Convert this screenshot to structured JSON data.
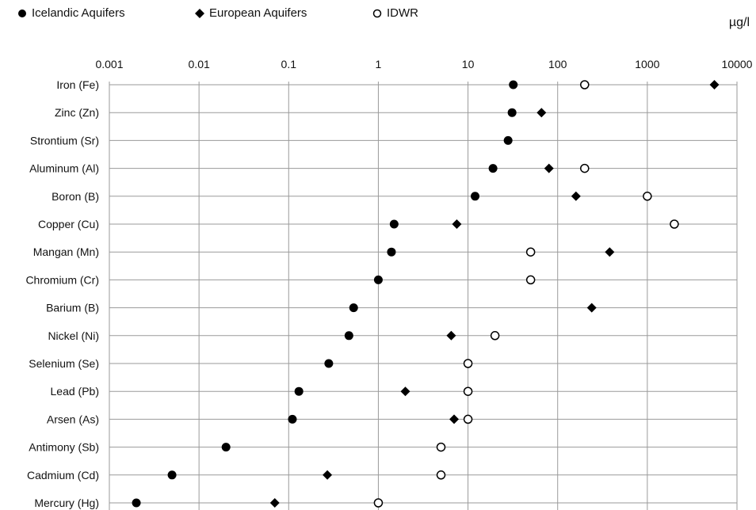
{
  "legend": {
    "items": [
      {
        "label": "Icelandic Aquifers",
        "marker": "filled-circle"
      },
      {
        "label": "European Aquifers",
        "marker": "filled-diamond"
      },
      {
        "label": "IDWR",
        "marker": "open-circle"
      }
    ]
  },
  "chart_data": {
    "type": "scatter",
    "xscale": "log",
    "xlim": [
      0.001,
      10000
    ],
    "xticks": [
      0.001,
      0.01,
      0.1,
      1,
      10,
      100,
      1000,
      10000
    ],
    "xtick_labels": [
      "0.001",
      "0.01",
      "0.1",
      "1",
      "10",
      "100",
      "1000",
      "10000"
    ],
    "unit_label": "µg/l",
    "grid": true,
    "legend_position": "top-left",
    "categories": [
      "Iron (Fe)",
      "Zinc (Zn)",
      "Strontium (Sr)",
      "Aluminum (Al)",
      "Boron (B)",
      "Copper (Cu)",
      "Mangan (Mn)",
      "Chromium (Cr)",
      "Barium (B)",
      "Nickel (Ni)",
      "Selenium (Se)",
      "Lead (Pb)",
      "Arsen (As)",
      "Antimony (Sb)",
      "Cadmium (Cd)",
      "Mercury (Hg)"
    ],
    "series": [
      {
        "name": "Icelandic Aquifers",
        "marker": "filled-circle",
        "values": [
          32,
          31,
          28,
          19,
          12,
          1.5,
          1.4,
          1.0,
          0.53,
          0.47,
          0.28,
          0.13,
          0.11,
          0.02,
          0.005,
          0.002
        ]
      },
      {
        "name": "European Aquifers",
        "marker": "filled-diamond",
        "values": [
          5600,
          66,
          null,
          80,
          160,
          7.5,
          380,
          null,
          240,
          6.5,
          null,
          2.0,
          7.0,
          null,
          0.27,
          0.07
        ]
      },
      {
        "name": "IDWR",
        "marker": "open-circle",
        "values": [
          200,
          null,
          null,
          200,
          1000,
          2000,
          50,
          50,
          null,
          20,
          10,
          10,
          10,
          5,
          5,
          1
        ]
      }
    ]
  }
}
